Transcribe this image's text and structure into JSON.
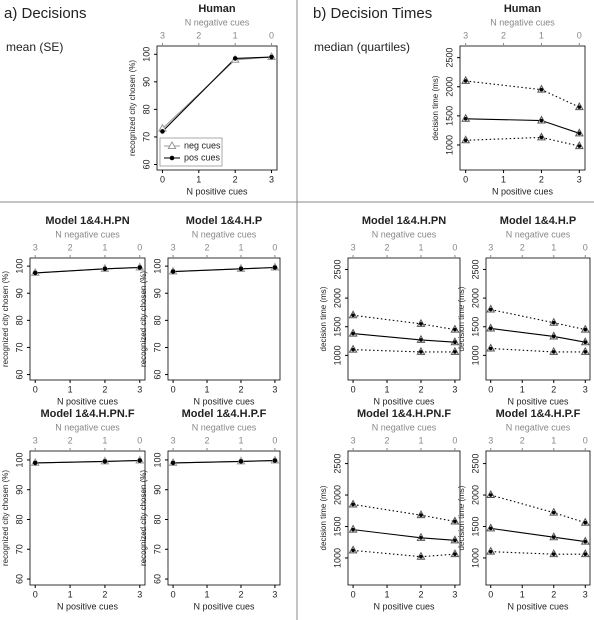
{
  "sections": [
    {
      "title": "a) Decisions",
      "subtitle": "mean (SE)"
    },
    {
      "title": "b) Decision Times",
      "subtitle": "median (quartiles)"
    }
  ],
  "chart_data": [
    {
      "type": "line",
      "title": "Human",
      "x_label": "N positive cues",
      "x2_label": "N negative cues",
      "y_label": "recognized city chosen (%)",
      "x": [
        0,
        2,
        3
      ],
      "xlim": [
        -0.15,
        3.15
      ],
      "xticks": [
        0,
        1,
        2,
        3
      ],
      "x2ticks": [
        {
          "value": 0,
          "label": "3"
        },
        {
          "value": 1,
          "label": "2"
        },
        {
          "value": 2,
          "label": "1"
        },
        {
          "value": 3,
          "label": "0"
        }
      ],
      "ylim": [
        58,
        103
      ],
      "yticks": [
        60,
        70,
        80,
        90,
        100
      ],
      "legend": "bottom-left",
      "series": [
        {
          "name": "neg cues",
          "color": "#999999",
          "marker": "triangle",
          "values": [
            73,
            98,
            99
          ]
        },
        {
          "name": "pos cues",
          "color": "#000000",
          "marker": "dot",
          "values": [
            72,
            98.5,
            99
          ]
        }
      ]
    },
    {
      "type": "line",
      "title": "Model 1&4.H.PN",
      "x_label": "N positive cues",
      "x2_label": "N negative cues",
      "y_label": "recognized city chosen (%)",
      "x": [
        0,
        2,
        3
      ],
      "xlim": [
        -0.15,
        3.15
      ],
      "xticks": [
        0,
        1,
        2,
        3
      ],
      "x2ticks": [
        {
          "value": 0,
          "label": "3"
        },
        {
          "value": 1,
          "label": "2"
        },
        {
          "value": 2,
          "label": "1"
        },
        {
          "value": 3,
          "label": "0"
        }
      ],
      "ylim": [
        58,
        103
      ],
      "yticks": [
        60,
        70,
        80,
        90,
        100
      ],
      "series": [
        {
          "color": "#999999",
          "marker": "triangle",
          "values": [
            97.5,
            99,
            99.5
          ]
        },
        {
          "color": "#000000",
          "marker": "dot",
          "values": [
            97.5,
            99,
            99.5
          ]
        }
      ]
    },
    {
      "type": "line",
      "title": "Model 1&4.H.P",
      "x_label": "N positive cues",
      "x2_label": "N negative cues",
      "y_label": "recognized city chosen (%)",
      "x": [
        0,
        2,
        3
      ],
      "xlim": [
        -0.15,
        3.15
      ],
      "xticks": [
        0,
        1,
        2,
        3
      ],
      "x2ticks": [
        {
          "value": 0,
          "label": "3"
        },
        {
          "value": 1,
          "label": "2"
        },
        {
          "value": 2,
          "label": "1"
        },
        {
          "value": 3,
          "label": "0"
        }
      ],
      "ylim": [
        58,
        103
      ],
      "yticks": [
        60,
        70,
        80,
        90,
        100
      ],
      "series": [
        {
          "color": "#999999",
          "marker": "triangle",
          "values": [
            98,
            99,
            99.5
          ]
        },
        {
          "color": "#000000",
          "marker": "dot",
          "values": [
            98,
            99,
            99.5
          ]
        }
      ]
    },
    {
      "type": "line",
      "title": "Model 1&4.H.PN.F",
      "x_label": "N positive cues",
      "x2_label": "N negative cues",
      "y_label": "recognized city chosen (%)",
      "x": [
        0,
        2,
        3
      ],
      "xlim": [
        -0.15,
        3.15
      ],
      "xticks": [
        0,
        1,
        2,
        3
      ],
      "x2ticks": [
        {
          "value": 0,
          "label": "3"
        },
        {
          "value": 1,
          "label": "2"
        },
        {
          "value": 2,
          "label": "1"
        },
        {
          "value": 3,
          "label": "0"
        }
      ],
      "ylim": [
        58,
        103
      ],
      "yticks": [
        60,
        70,
        80,
        90,
        100
      ],
      "series": [
        {
          "color": "#999999",
          "marker": "triangle",
          "values": [
            99,
            99.5,
            99.8
          ]
        },
        {
          "color": "#000000",
          "marker": "dot",
          "values": [
            99,
            99.5,
            99.8
          ]
        }
      ]
    },
    {
      "type": "line",
      "title": "Model 1&4.H.P.F",
      "x_label": "N positive cues",
      "x2_label": "N negative cues",
      "y_label": "recognized city chosen (%)",
      "x": [
        0,
        2,
        3
      ],
      "xlim": [
        -0.15,
        3.15
      ],
      "xticks": [
        0,
        1,
        2,
        3
      ],
      "x2ticks": [
        {
          "value": 0,
          "label": "3"
        },
        {
          "value": 1,
          "label": "2"
        },
        {
          "value": 2,
          "label": "1"
        },
        {
          "value": 3,
          "label": "0"
        }
      ],
      "ylim": [
        58,
        103
      ],
      "yticks": [
        60,
        70,
        80,
        90,
        100
      ],
      "series": [
        {
          "color": "#999999",
          "marker": "triangle",
          "values": [
            99,
            99.5,
            99.8
          ]
        },
        {
          "color": "#000000",
          "marker": "dot",
          "values": [
            99,
            99.5,
            99.8
          ]
        }
      ]
    },
    {
      "type": "line",
      "title": "Human",
      "x_label": "N positive cues",
      "x2_label": "N negative cues",
      "y_label": "decision time (ms)",
      "x": [
        0,
        2,
        3
      ],
      "xlim": [
        -0.15,
        3.15
      ],
      "xticks": [
        0,
        1,
        2,
        3
      ],
      "x2ticks": [
        {
          "value": 0,
          "label": "3"
        },
        {
          "value": 1,
          "label": "2"
        },
        {
          "value": 2,
          "label": "1"
        },
        {
          "value": 3,
          "label": "0"
        }
      ],
      "ylim": [
        570,
        2700
      ],
      "yticks": [
        1000,
        1500,
        2000,
        2500
      ],
      "series": [
        {
          "color": "#000000",
          "marker": "triangle-dot",
          "style": "dotted",
          "values": [
            2100,
            1950,
            1650
          ]
        },
        {
          "color": "#000000",
          "marker": "triangle-dot",
          "style": "solid",
          "values": [
            1450,
            1420,
            1200
          ]
        },
        {
          "color": "#000000",
          "marker": "triangle-dot",
          "style": "dotted",
          "values": [
            1080,
            1130,
            980
          ]
        }
      ]
    },
    {
      "type": "line",
      "title": "Model 1&4.H.PN",
      "x_label": "N positive cues",
      "x2_label": "N negative cues",
      "y_label": "decision time (ms)",
      "x": [
        0,
        2,
        3
      ],
      "xlim": [
        -0.15,
        3.15
      ],
      "xticks": [
        0,
        1,
        2,
        3
      ],
      "x2ticks": [
        {
          "value": 0,
          "label": "3"
        },
        {
          "value": 1,
          "label": "2"
        },
        {
          "value": 2,
          "label": "1"
        },
        {
          "value": 3,
          "label": "0"
        }
      ],
      "ylim": [
        570,
        2700
      ],
      "yticks": [
        1000,
        1500,
        2000,
        2500
      ],
      "series": [
        {
          "color": "#000000",
          "marker": "triangle-dot",
          "style": "dotted",
          "values": [
            1700,
            1550,
            1450
          ]
        },
        {
          "color": "#000000",
          "marker": "triangle-dot",
          "style": "solid",
          "values": [
            1380,
            1270,
            1230
          ]
        },
        {
          "color": "#000000",
          "marker": "triangle-dot",
          "style": "dotted",
          "values": [
            1100,
            1060,
            1060
          ]
        }
      ]
    },
    {
      "type": "line",
      "title": "Model 1&4.H.P",
      "x_label": "N positive cues",
      "x2_label": "N negative cues",
      "y_label": "decision time (ms)",
      "x": [
        0,
        2,
        3
      ],
      "xlim": [
        -0.15,
        3.15
      ],
      "xticks": [
        0,
        1,
        2,
        3
      ],
      "x2ticks": [
        {
          "value": 0,
          "label": "3"
        },
        {
          "value": 1,
          "label": "2"
        },
        {
          "value": 2,
          "label": "1"
        },
        {
          "value": 3,
          "label": "0"
        }
      ],
      "ylim": [
        570,
        2700
      ],
      "yticks": [
        1000,
        1500,
        2000,
        2500
      ],
      "series": [
        {
          "color": "#000000",
          "marker": "triangle-dot",
          "style": "dotted",
          "values": [
            1800,
            1570,
            1450
          ]
        },
        {
          "color": "#000000",
          "marker": "triangle-dot",
          "style": "solid",
          "values": [
            1470,
            1330,
            1230
          ]
        },
        {
          "color": "#000000",
          "marker": "triangle-dot",
          "style": "dotted",
          "values": [
            1120,
            1060,
            1060
          ]
        }
      ]
    },
    {
      "type": "line",
      "title": "Model 1&4.H.PN.F",
      "x_label": "N positive cues",
      "x2_label": "N negative cues",
      "y_label": "decision time (ms)",
      "x": [
        0,
        2,
        3
      ],
      "xlim": [
        -0.15,
        3.15
      ],
      "xticks": [
        0,
        1,
        2,
        3
      ],
      "x2ticks": [
        {
          "value": 0,
          "label": "3"
        },
        {
          "value": 1,
          "label": "2"
        },
        {
          "value": 2,
          "label": "1"
        },
        {
          "value": 3,
          "label": "0"
        }
      ],
      "ylim": [
        570,
        2700
      ],
      "yticks": [
        1000,
        1500,
        2000,
        2500
      ],
      "series": [
        {
          "color": "#000000",
          "marker": "triangle-dot",
          "style": "dotted",
          "values": [
            1850,
            1680,
            1580
          ]
        },
        {
          "color": "#000000",
          "marker": "triangle-dot",
          "style": "solid",
          "values": [
            1450,
            1320,
            1280
          ]
        },
        {
          "color": "#000000",
          "marker": "triangle-dot",
          "style": "dotted",
          "values": [
            1120,
            1020,
            1060
          ]
        }
      ]
    },
    {
      "type": "line",
      "title": "Model 1&4.H.P.F",
      "x_label": "N positive cues",
      "x2_label": "N negative cues",
      "y_label": "decision time (ms)",
      "x": [
        0,
        2,
        3
      ],
      "xlim": [
        -0.15,
        3.15
      ],
      "xticks": [
        0,
        1,
        2,
        3
      ],
      "x2ticks": [
        {
          "value": 0,
          "label": "3"
        },
        {
          "value": 1,
          "label": "2"
        },
        {
          "value": 2,
          "label": "1"
        },
        {
          "value": 3,
          "label": "0"
        }
      ],
      "ylim": [
        570,
        2700
      ],
      "yticks": [
        1000,
        1500,
        2000,
        2500
      ],
      "series": [
        {
          "color": "#000000",
          "marker": "triangle-dot",
          "style": "dotted",
          "values": [
            2000,
            1720,
            1560
          ]
        },
        {
          "color": "#000000",
          "marker": "triangle-dot",
          "style": "solid",
          "values": [
            1470,
            1330,
            1260
          ]
        },
        {
          "color": "#000000",
          "marker": "triangle-dot",
          "style": "dotted",
          "values": [
            1100,
            1060,
            1060
          ]
        }
      ]
    }
  ]
}
